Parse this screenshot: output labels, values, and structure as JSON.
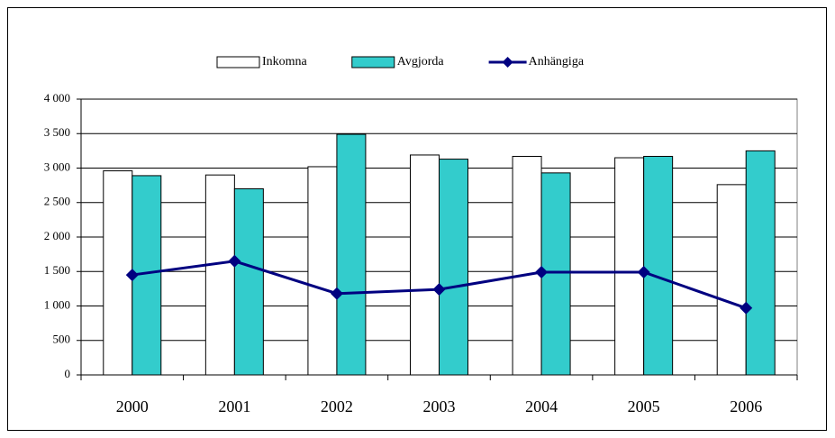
{
  "chart_data": {
    "type": "bar",
    "categories": [
      "2000",
      "2001",
      "2002",
      "2003",
      "2004",
      "2005",
      "2006"
    ],
    "series": [
      {
        "name": "Inkomna",
        "type": "bar",
        "color": "#ffffff",
        "values": [
          2960,
          2900,
          3020,
          3190,
          3170,
          3150,
          2760
        ]
      },
      {
        "name": "Avgjorda",
        "type": "bar",
        "color": "#33cccc",
        "values": [
          2890,
          2700,
          3490,
          3130,
          2930,
          3170,
          3250
        ]
      },
      {
        "name": "Anhängiga",
        "type": "line",
        "color": "#000080",
        "values": [
          1450,
          1650,
          1180,
          1240,
          1490,
          1490,
          970
        ]
      }
    ],
    "ylim": [
      0,
      4000
    ],
    "yticks": [
      0,
      500,
      {
        "value": 1000,
        "label": "1 000"
      },
      {
        "value": 1500,
        "label": "1 500"
      },
      {
        "value": 2000,
        "label": "2 000"
      },
      {
        "value": 2500,
        "label": "2 500"
      },
      {
        "value": 3000,
        "label": "3 000"
      },
      {
        "value": 3500,
        "label": "3 500"
      },
      {
        "value": 4000,
        "label": "4 000"
      }
    ],
    "grid": true,
    "legend": "top"
  }
}
